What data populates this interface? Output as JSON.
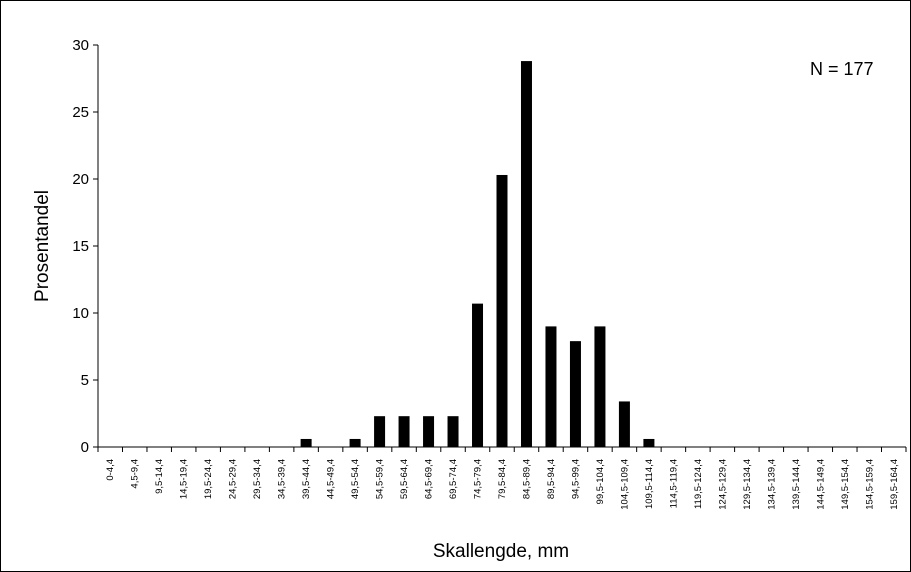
{
  "chart_data": {
    "type": "bar",
    "title": "",
    "xlabel": "Skallengde, mm",
    "ylabel": "Prosentandel",
    "ylim": [
      0,
      30
    ],
    "yticks": [
      0,
      5,
      10,
      15,
      20,
      25,
      30
    ],
    "grid": false,
    "legend": "none",
    "annotation": "N = 177",
    "bar_color": "#000000",
    "categories": [
      "0-4,4",
      "4,5-9,4",
      "9,5-14,4",
      "14,5-19,4",
      "19,5-24,4",
      "24,5-29,4",
      "29,5-34,4",
      "34,5-39,4",
      "39,5-44,4",
      "44,5-49,4",
      "49,5-54,4",
      "54,5-59,4",
      "59,5-64,4",
      "64,5-69,4",
      "69,5-74,4",
      "74,5-79,4",
      "79,5-84,4",
      "84,5-89,4",
      "89,5-94,4",
      "94,5-99,4",
      "99,5-104,4",
      "104,5-109,4",
      "109,5-114,4",
      "114,5-119,4",
      "119,5-124,4",
      "124,5-129,4",
      "129,5-134,4",
      "134,5-139,4",
      "139,5-144,4",
      "144,5-149,4",
      "149,5-154,4",
      "154,5-159,4",
      "159,5-164,4"
    ],
    "values": [
      0,
      0,
      0,
      0,
      0,
      0,
      0,
      0,
      0.6,
      0,
      0.6,
      2.3,
      2.3,
      2.3,
      2.3,
      10.7,
      20.3,
      28.8,
      9.0,
      7.9,
      9.0,
      3.4,
      0.6,
      0,
      0,
      0,
      0,
      0,
      0,
      0,
      0,
      0,
      0
    ]
  }
}
